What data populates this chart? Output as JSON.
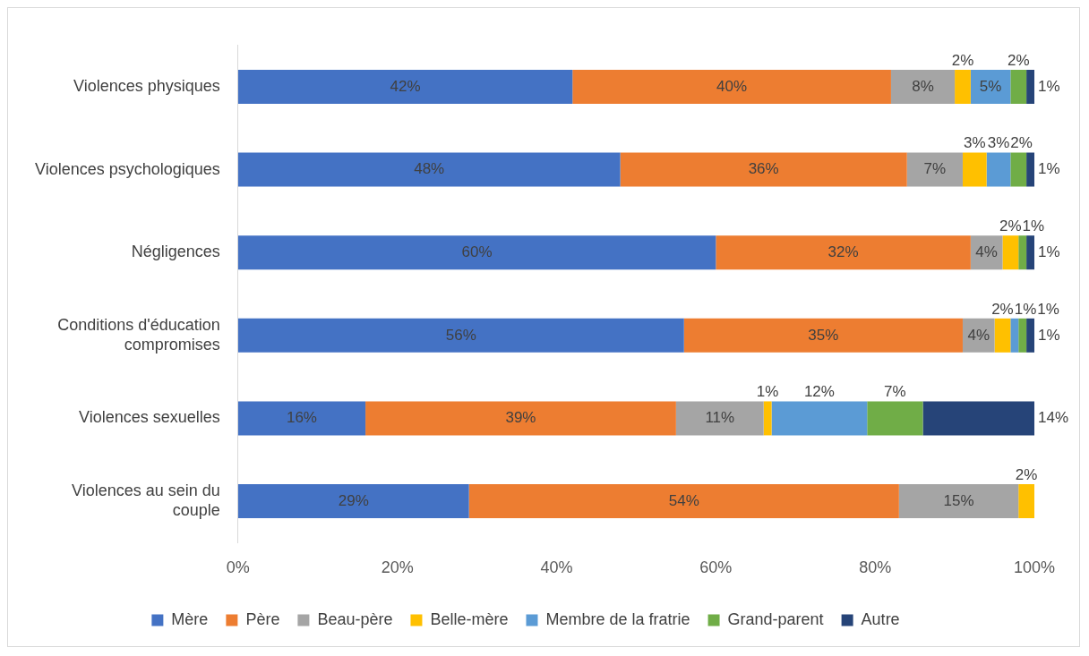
{
  "chart_data": {
    "type": "bar",
    "orientation": "horizontal",
    "stacked": true,
    "categories": [
      "Violences physiques",
      "Violences psychologiques",
      "Négligences",
      "Conditions d'éducation compromises",
      "Violences sexuelles",
      "Violences au sein du couple"
    ],
    "series": [
      {
        "name": "Mère",
        "color": "#4472c4",
        "values": [
          42,
          48,
          60,
          56,
          16,
          29
        ],
        "value_labels": [
          "42%",
          "48%",
          "60%",
          "56%",
          "16%",
          "29%"
        ]
      },
      {
        "name": "Père",
        "color": "#ed7d31",
        "values": [
          40,
          36,
          32,
          35,
          39,
          54
        ],
        "value_labels": [
          "40%",
          "36%",
          "32%",
          "35%",
          "39%",
          "54%"
        ]
      },
      {
        "name": "Beau-père",
        "color": "#a5a5a5",
        "values": [
          8,
          7,
          4,
          4,
          11,
          15
        ],
        "value_labels": [
          "8%",
          "7%",
          "4%",
          "4%",
          "11%",
          "15%"
        ]
      },
      {
        "name": "Belle-mère",
        "color": "#ffc000",
        "values": [
          2,
          3,
          2,
          2,
          1,
          2
        ],
        "value_labels": [
          "2%",
          "3%",
          "2%",
          "2%",
          "1%",
          "2%"
        ]
      },
      {
        "name": "Membre de la fratrie",
        "color": "#5b9bd5",
        "values": [
          5,
          3,
          0,
          1,
          12,
          0
        ],
        "value_labels": [
          "5%",
          "3%",
          null,
          "1%",
          "12%",
          null
        ]
      },
      {
        "name": "Grand-parent",
        "color": "#70ad47",
        "values": [
          2,
          2,
          1,
          1,
          7,
          0
        ],
        "value_labels": [
          "2%",
          "2%",
          "1%",
          "1%",
          "7%",
          null
        ]
      },
      {
        "name": "Autre",
        "color": "#264478",
        "values": [
          1,
          1,
          1,
          1,
          14,
          0
        ],
        "value_labels": [
          "1%",
          "1%",
          "1%",
          "1%",
          "14%",
          null
        ]
      }
    ],
    "xlim": [
      0,
      100
    ],
    "xticks": [
      {
        "value": 0,
        "label": "0%"
      },
      {
        "value": 20,
        "label": "20%"
      },
      {
        "value": 40,
        "label": "40%"
      },
      {
        "value": 60,
        "label": "60%"
      },
      {
        "value": 80,
        "label": "80%"
      },
      {
        "value": 100,
        "label": "100%"
      }
    ],
    "grid": false,
    "legend": "bottom"
  }
}
